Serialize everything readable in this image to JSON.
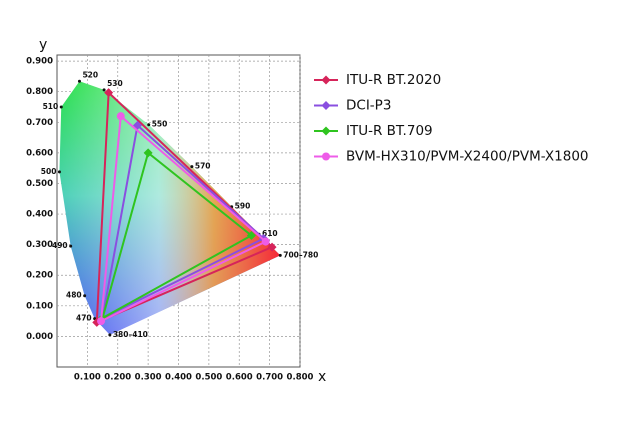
{
  "chart_data": {
    "type": "gamut",
    "xlabel": "x",
    "ylabel": "y",
    "xlim": [
      0,
      0.8
    ],
    "ylim": [
      -0.1,
      0.92
    ],
    "xticks": [
      {
        "value": 0.1,
        "label": "0.100"
      },
      {
        "value": 0.2,
        "label": "0.200"
      },
      {
        "value": 0.3,
        "label": "0.300"
      },
      {
        "value": 0.4,
        "label": "0.400"
      },
      {
        "value": 0.5,
        "label": "0.500"
      },
      {
        "value": 0.6,
        "label": "0.600"
      },
      {
        "value": 0.7,
        "label": "0.700"
      },
      {
        "value": 0.8,
        "label": "0.800"
      }
    ],
    "yticks": [
      {
        "value": 0,
        "label": "0.000"
      },
      {
        "value": 0.1,
        "label": "0.100"
      },
      {
        "value": 0.2,
        "label": "0.200"
      },
      {
        "value": 0.3,
        "label": "0.300"
      },
      {
        "value": 0.4,
        "label": "0.400"
      },
      {
        "value": 0.5,
        "label": "0.500"
      },
      {
        "value": 0.6,
        "label": "0.600"
      },
      {
        "value": 0.7,
        "label": "0.700"
      },
      {
        "value": 0.8,
        "label": "0.800"
      },
      {
        "value": 0.9,
        "label": "0.900"
      }
    ],
    "grid": true,
    "locus": {
      "labels": [
        "380–410",
        "470",
        "480",
        "490",
        "500",
        "510",
        "520",
        "530",
        "550",
        "570",
        "590",
        "610",
        "700–780"
      ],
      "x": [
        0.174,
        0.124,
        0.091,
        0.045,
        0.008,
        0.014,
        0.074,
        0.155,
        0.302,
        0.444,
        0.575,
        0.665,
        0.735
      ],
      "y": [
        0.005,
        0.058,
        0.133,
        0.295,
        0.538,
        0.75,
        0.834,
        0.806,
        0.692,
        0.555,
        0.424,
        0.334,
        0.265
      ]
    },
    "series": [
      {
        "name": "ITU-R BT.2020",
        "color": "#d6245a",
        "marker": "diamond",
        "x": [
          0.708,
          0.17,
          0.131
        ],
        "y": [
          0.292,
          0.797,
          0.046
        ]
      },
      {
        "name": "DCI-P3",
        "color": "#8a4fe0",
        "marker": "diamond",
        "x": [
          0.68,
          0.265,
          0.15
        ],
        "y": [
          0.32,
          0.69,
          0.06
        ]
      },
      {
        "name": "ITU-R BT.709",
        "color": "#2fc41f",
        "marker": "diamond",
        "x": [
          0.64,
          0.3,
          0.15
        ],
        "y": [
          0.33,
          0.6,
          0.06
        ]
      },
      {
        "name": "BVM-HX310/PVM-X2400/PVM-X1800",
        "color": "#ee5ce8",
        "marker": "circle",
        "x": [
          0.687,
          0.21,
          0.145
        ],
        "y": [
          0.31,
          0.72,
          0.05
        ]
      }
    ]
  }
}
